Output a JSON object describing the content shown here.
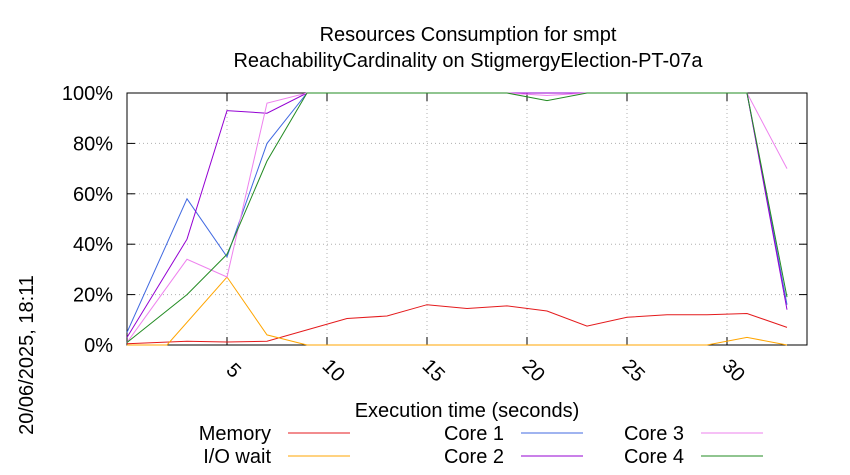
{
  "chart_data": {
    "type": "line",
    "title_line1": "Resources Consumption for smpt",
    "title_line2": "ReachabilityCardinality on StigmergyElection-PT-07a",
    "xlabel": "Execution time (seconds)",
    "side_label": "20/06/2025, 18:11",
    "xlim": [
      0,
      34
    ],
    "ylim": [
      0,
      100
    ],
    "x_ticks": [
      5,
      10,
      15,
      20,
      25,
      30
    ],
    "y_ticks": [
      0,
      20,
      40,
      60,
      80,
      100
    ],
    "y_tick_labels": [
      "0%",
      "20%",
      "40%",
      "60%",
      "80%",
      "100%"
    ],
    "grid": true,
    "legend_position": "bottom",
    "series": [
      {
        "name": "Memory",
        "color": "#e41a1c",
        "x": [
          0,
          3,
          5,
          7,
          9,
          11,
          13,
          15,
          17,
          19,
          21,
          23,
          25,
          27,
          29,
          31,
          33
        ],
        "y": [
          0.5,
          1.5,
          1.2,
          1.5,
          6,
          10.5,
          11.5,
          16,
          14.5,
          15.5,
          13.5,
          7.5,
          11,
          12,
          12,
          12.5,
          7
        ]
      },
      {
        "name": "I/O wait",
        "color": "#ffa500",
        "x": [
          0,
          2,
          5,
          7,
          9,
          11,
          29,
          31,
          33
        ],
        "y": [
          0,
          0,
          27,
          4,
          0,
          0,
          0,
          3,
          0
        ]
      },
      {
        "name": "Core 1",
        "color": "#4169e1",
        "x": [
          0,
          3,
          5,
          7,
          9,
          31,
          33
        ],
        "y": [
          5,
          58,
          35,
          80,
          100,
          100,
          16
        ]
      },
      {
        "name": "Core 2",
        "color": "#9400d3",
        "x": [
          0,
          3,
          5,
          7,
          9,
          31,
          33
        ],
        "y": [
          3,
          42,
          93,
          92,
          100,
          100,
          14
        ]
      },
      {
        "name": "Core 3",
        "color": "#ee82ee",
        "x": [
          0,
          3,
          5,
          7,
          9,
          19,
          21,
          23,
          31,
          33
        ],
        "y": [
          1,
          34,
          27,
          96,
          100,
          100,
          99,
          100,
          100,
          70
        ]
      },
      {
        "name": "Core 4",
        "color": "#228b22",
        "x": [
          0,
          3,
          5,
          7,
          9,
          19,
          21,
          23,
          31,
          33
        ],
        "y": [
          1,
          20,
          36,
          73,
          100,
          100,
          97,
          100,
          100,
          19
        ]
      }
    ]
  }
}
